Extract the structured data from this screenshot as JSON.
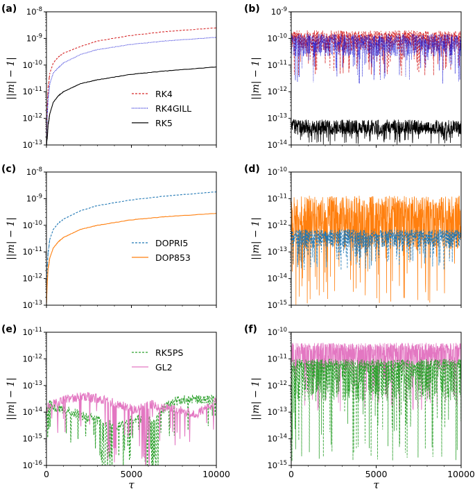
{
  "figure": {
    "x_tick_labels": [
      "0",
      "5000",
      "10000"
    ],
    "x_label": "τ",
    "y_label": "||m| − 1|"
  },
  "chart_data": [
    {
      "panel": "(a)",
      "type": "line",
      "yscale": "log",
      "xlim": [
        0,
        10000
      ],
      "ylim_exp": [
        -13,
        -8
      ],
      "y_tick_labels": [
        "10-13",
        "10-12",
        "10-11",
        "10-10",
        "10-9",
        "10-8"
      ],
      "legend_position": "center-right",
      "series": [
        {
          "name": "RK4",
          "color": "#d62728",
          "dash": "dashed",
          "shape": "growth",
          "x": [
            0,
            50,
            100,
            200,
            400,
            700,
            1000,
            2000,
            3000,
            5000,
            7000,
            10000
          ],
          "y": [
            1e-13,
            3e-12,
            1.5e-11,
            5e-11,
            1.2e-10,
            2e-10,
            2.8e-10,
            5e-10,
            8e-10,
            1.3e-09,
            1.8e-09,
            2.5e-09
          ]
        },
        {
          "name": "RK4GILL",
          "color": "#1f1fd6",
          "dash": "dotted",
          "shape": "growth",
          "x": [
            0,
            50,
            100,
            200,
            400,
            700,
            1000,
            2000,
            3000,
            5000,
            7000,
            10000
          ],
          "y": [
            1e-13,
            1.5e-12,
            6e-12,
            2e-11,
            5e-11,
            8e-11,
            1.2e-10,
            2.5e-10,
            3.8e-10,
            6e-10,
            8e-10,
            1.1e-09
          ]
        },
        {
          "name": "RK5",
          "color": "#000000",
          "dash": "solid",
          "shape": "growth",
          "x": [
            0,
            50,
            100,
            200,
            400,
            700,
            1000,
            2000,
            3000,
            5000,
            7000,
            10000
          ],
          "y": [
            1e-13,
            2e-13,
            6e-13,
            1.5e-12,
            4e-12,
            7e-12,
            1e-11,
            2e-11,
            2.8e-11,
            4.5e-11,
            6e-11,
            8.5e-11
          ]
        }
      ]
    },
    {
      "panel": "(b)",
      "type": "line",
      "yscale": "log",
      "xlim": [
        0,
        10000
      ],
      "ylim_exp": [
        -14,
        -9
      ],
      "y_tick_labels": [
        "10-14",
        "10-13",
        "10-12",
        "10-11",
        "10-10",
        "10-9"
      ],
      "series": [
        {
          "name": "RK4",
          "color": "#d62728",
          "dash": "dashed",
          "shape": "noise",
          "range": [
            4e-12,
            2e-10
          ],
          "typical": 1e-10,
          "seed": 11
        },
        {
          "name": "RK4GILL",
          "color": "#1f1fd6",
          "dash": "dotted",
          "shape": "noise",
          "range": [
            2e-12,
            1.5e-10
          ],
          "typical": 7e-11,
          "seed": 23
        },
        {
          "name": "RK5",
          "color": "#000000",
          "dash": "solid",
          "shape": "noise",
          "range": [
            1e-14,
            9e-14
          ],
          "typical": 4e-14,
          "seed": 37
        }
      ]
    },
    {
      "panel": "(c)",
      "type": "line",
      "yscale": "log",
      "xlim": [
        0,
        10000
      ],
      "ylim_exp": [
        -13,
        -8
      ],
      "y_tick_labels": [
        "10-13",
        "10-12",
        "10-11",
        "10-10",
        "10-9",
        "10-8"
      ],
      "legend_position": "center-right",
      "series": [
        {
          "name": "DOPRI5",
          "color": "#1f77b4",
          "dash": "dashed",
          "shape": "growth",
          "x": [
            0,
            50,
            100,
            200,
            400,
            700,
            1000,
            2000,
            3000,
            5000,
            7000,
            10000
          ],
          "y": [
            1e-13,
            3e-12,
            1e-11,
            3e-11,
            7e-11,
            1.2e-10,
            1.7e-10,
            3.5e-10,
            5.5e-10,
            9e-10,
            1.25e-09,
            1.8e-09
          ]
        },
        {
          "name": "DOP853",
          "color": "#ff7f0e",
          "dash": "solid",
          "shape": "growth",
          "x": [
            0,
            50,
            100,
            200,
            400,
            700,
            1000,
            2000,
            3000,
            5000,
            7000,
            10000
          ],
          "y": [
            1e-13,
            8e-13,
            2.5e-12,
            6e-12,
            1.4e-11,
            2.4e-11,
            3.5e-11,
            7e-11,
            1e-10,
            1.6e-10,
            2.1e-10,
            2.8e-10
          ]
        }
      ]
    },
    {
      "panel": "(d)",
      "type": "line",
      "yscale": "log",
      "xlim": [
        0,
        10000
      ],
      "ylim_exp": [
        -15,
        -10
      ],
      "y_tick_labels": [
        "10-15",
        "10-14",
        "10-13",
        "10-12",
        "10-11",
        "10-10"
      ],
      "series": [
        {
          "name": "DOP853",
          "color": "#ff7f0e",
          "dash": "solid",
          "shape": "noise",
          "range": [
            1e-15,
            1.3e-11
          ],
          "typical": 1.5e-12,
          "seed": 51
        },
        {
          "name": "DOPRI5",
          "color": "#1f77b4",
          "dash": "dashed",
          "shape": "noise",
          "range": [
            2e-14,
            7e-13
          ],
          "typical": 4e-13,
          "seed": 67
        }
      ]
    },
    {
      "panel": "(e)",
      "type": "line",
      "yscale": "log",
      "xlim": [
        0,
        10000
      ],
      "ylim_exp": [
        -16,
        -11
      ],
      "y_tick_labels": [
        "10-16",
        "10-15",
        "10-14",
        "10-13",
        "10-12",
        "10-11"
      ],
      "legend_position": "upper-right",
      "series": [
        {
          "name": "RK5PS",
          "color": "#2ca02c",
          "dash": "dashed",
          "shape": "wander",
          "x": [
            0,
            200,
            500,
            1000,
            1500,
            2000,
            2500,
            3000,
            3500,
            4000,
            4500,
            5000,
            5500,
            6000,
            6500,
            7000,
            7500,
            8000,
            8500,
            9000,
            9500,
            10000
          ],
          "y": [
            1e-14,
            2e-14,
            1.5e-14,
            1.2e-14,
            1e-14,
            8e-15,
            6e-15,
            5e-15,
            4e-15,
            3e-15,
            4e-15,
            5e-15,
            6e-15,
            5e-15,
            6e-15,
            1.5e-14,
            2.5e-14,
            3e-14,
            3.2e-14,
            3e-14,
            2.8e-14,
            3e-14
          ],
          "dips": [
            [
              3200,
              3900
            ],
            [
              4500,
              5000
            ],
            [
              5800,
              6600
            ]
          ],
          "seed": 79
        },
        {
          "name": "GL2",
          "color": "#e377c2",
          "dash": "solid",
          "shape": "wander",
          "x": [
            0,
            300,
            700,
            1200,
            1700,
            2200,
            2700,
            3200,
            3700,
            4200,
            4700,
            5200,
            5700,
            6200,
            6700,
            7200,
            7700,
            8200,
            8700,
            9200,
            9700,
            10000
          ],
          "y": [
            1.5e-14,
            2e-14,
            2.5e-14,
            3e-14,
            3.5e-14,
            3.8e-14,
            3.5e-14,
            3e-14,
            2.5e-14,
            2e-14,
            1.5e-14,
            1.2e-14,
            1.5e-14,
            2e-14,
            1.5e-14,
            1.5e-14,
            1.2e-14,
            1e-14,
            8e-15,
            1.2e-14,
            1.8e-14,
            2.5e-14
          ],
          "dips": [
            [
              3600,
              4100
            ],
            [
              5600,
              6100
            ]
          ],
          "seed": 97
        }
      ]
    },
    {
      "panel": "(f)",
      "type": "line",
      "yscale": "log",
      "xlim": [
        0,
        10000
      ],
      "ylim_exp": [
        -15,
        -10
      ],
      "y_tick_labels": [
        "10-15",
        "10-14",
        "10-13",
        "10-12",
        "10-11",
        "10-10"
      ],
      "series": [
        {
          "name": "GL2",
          "color": "#e377c2",
          "dash": "solid",
          "shape": "noise",
          "range": [
            1e-13,
            4e-11
          ],
          "typical": 2e-11,
          "seed": 103
        },
        {
          "name": "RK5PS",
          "color": "#2ca02c",
          "dash": "dashed",
          "shape": "noise",
          "range": [
            1e-15,
            1e-11
          ],
          "typical": 5e-12,
          "seed": 113
        }
      ]
    }
  ]
}
